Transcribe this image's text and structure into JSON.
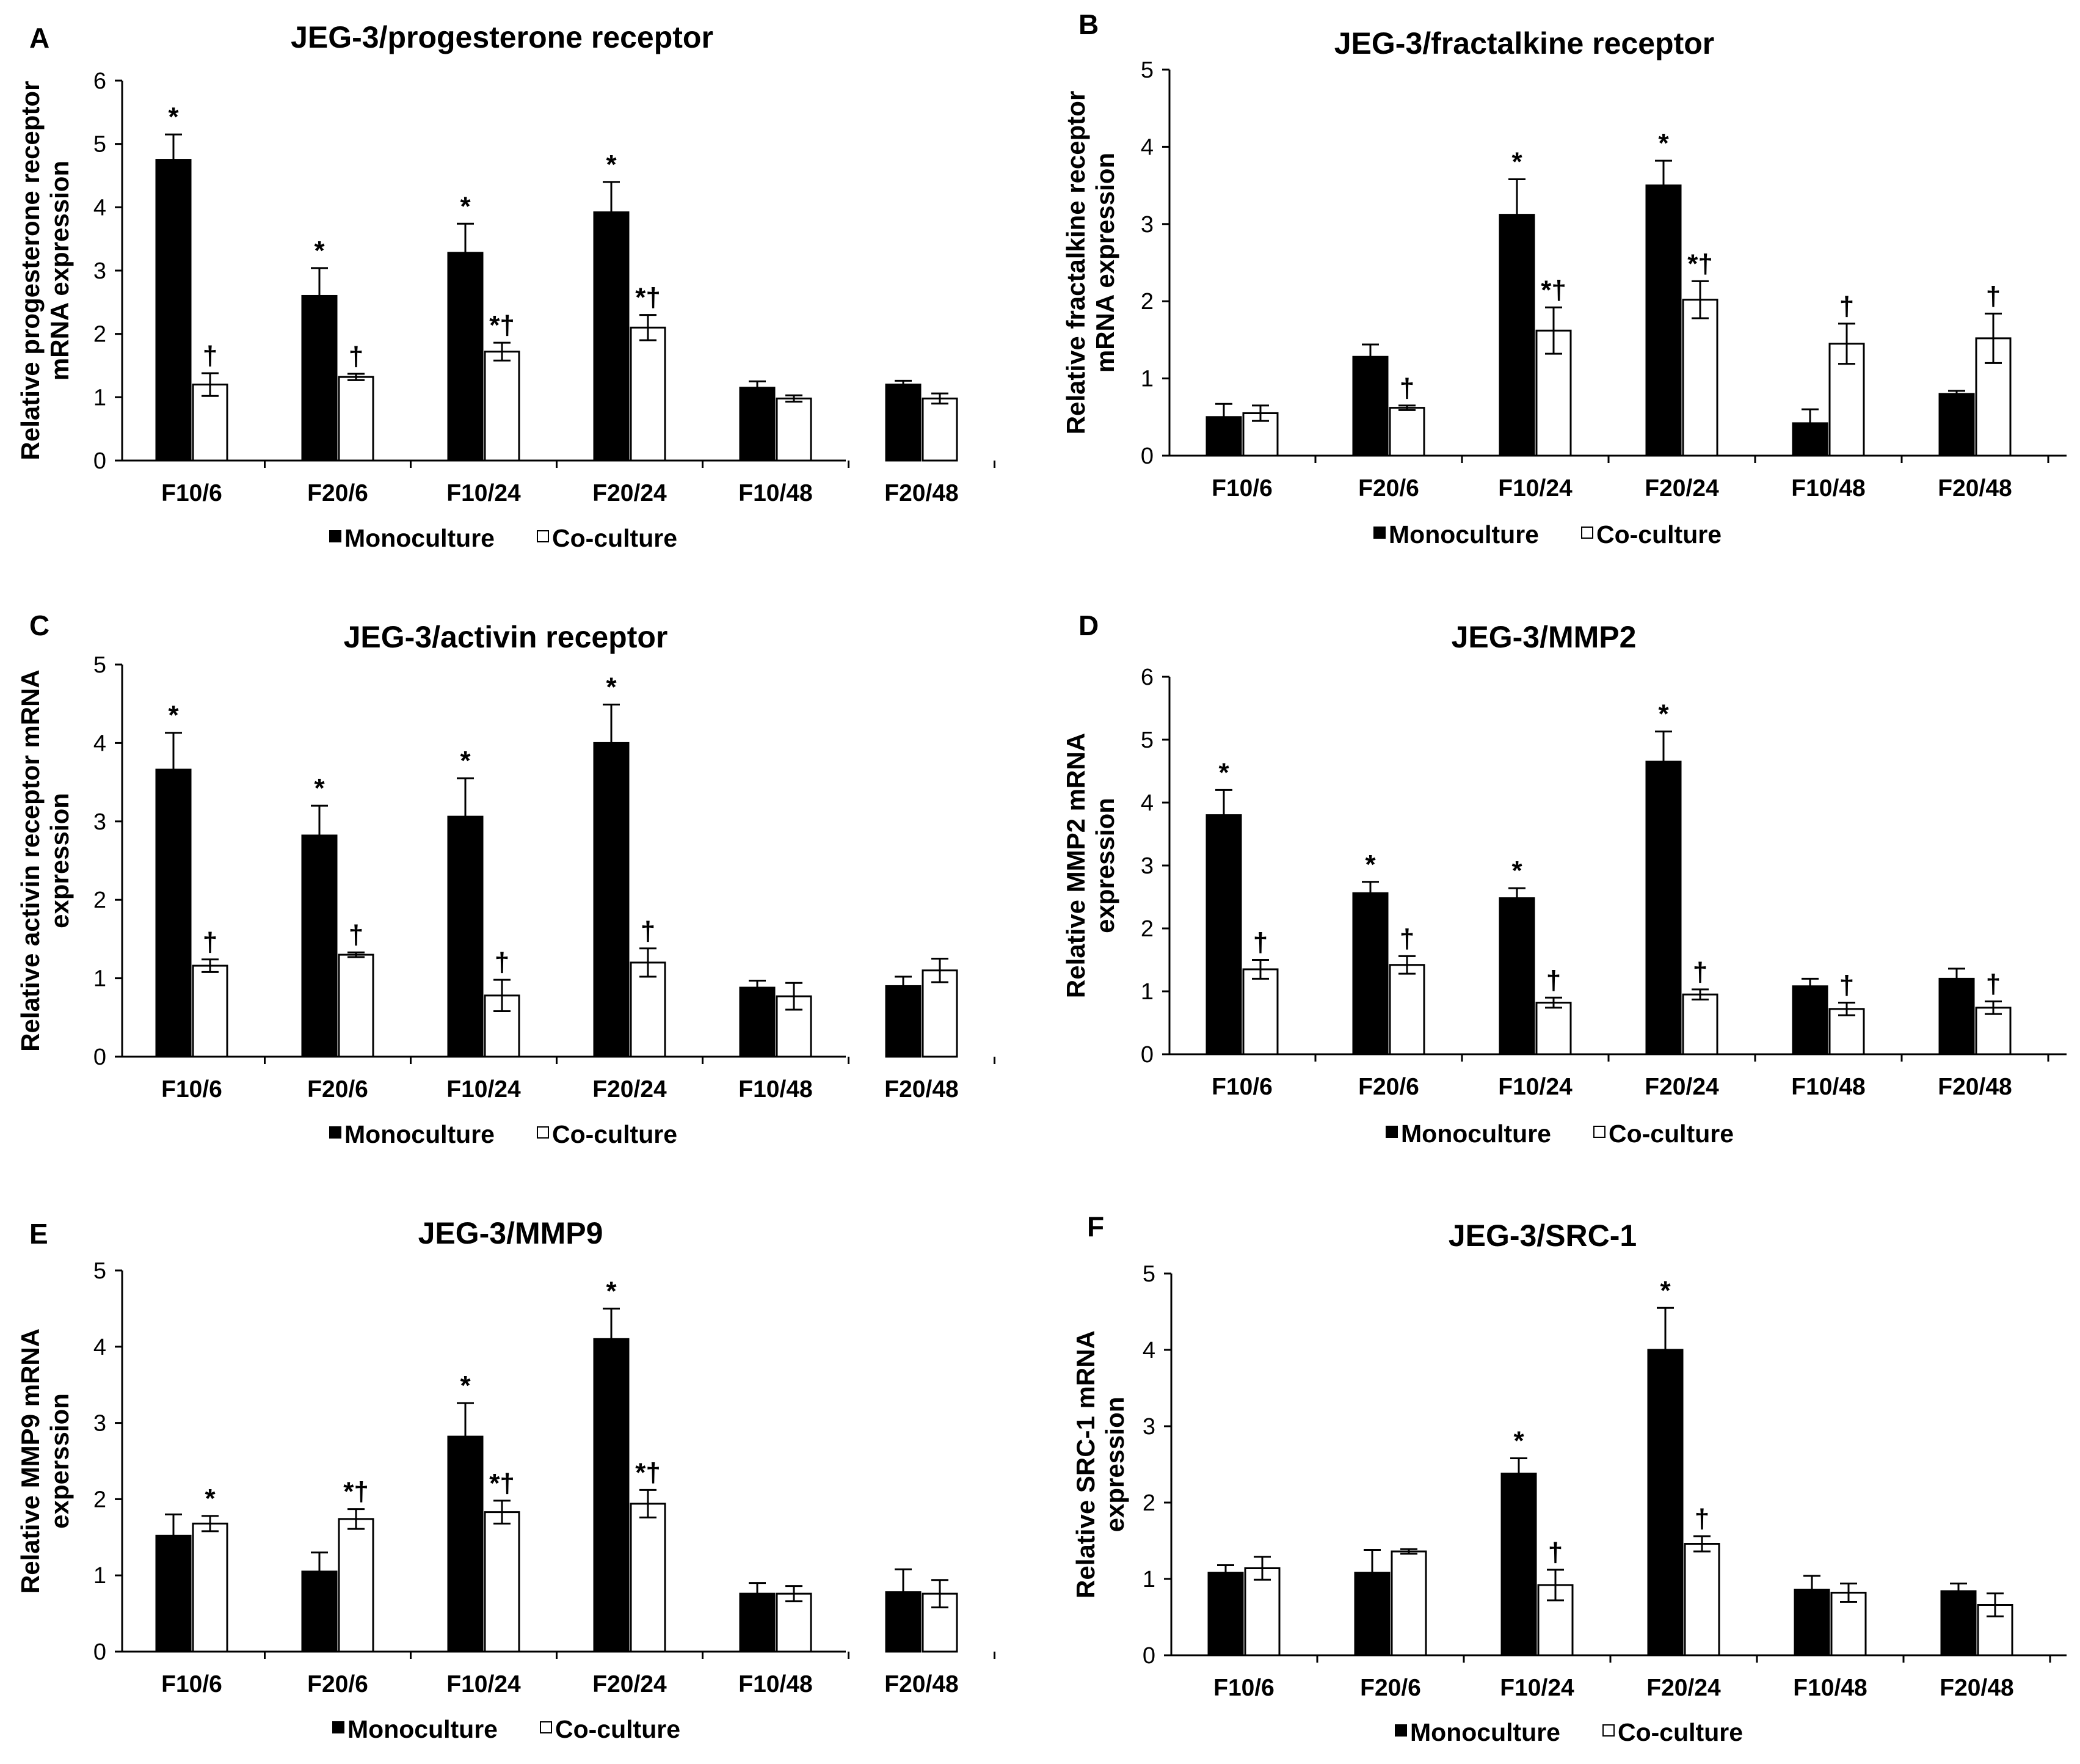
{
  "figure": {
    "legend": {
      "mono": "Monoculture",
      "co": "Co-culture"
    },
    "colors": {
      "mono": "#000000",
      "co": "#ffffff",
      "axis": "#000000"
    }
  },
  "chart_data": [
    {
      "type": "bar",
      "panel": "A",
      "title": "JEG-3/progesterone receptor",
      "ylabel": [
        "Relative progesterone receptor",
        "mRNA expression"
      ],
      "xlabel": "",
      "categories": [
        "F10/6",
        "F20/6",
        "F10/24",
        "F20/24",
        "F10/48",
        "F20/48"
      ],
      "ylim": [
        0,
        6
      ],
      "yticks": [
        0,
        1,
        2,
        3,
        4,
        5,
        6
      ],
      "series": [
        {
          "name": "Monoculture",
          "values": [
            4.75,
            2.6,
            3.28,
            3.92,
            1.15,
            1.2
          ],
          "errors": [
            0.4,
            0.44,
            0.46,
            0.48,
            0.1,
            0.06
          ],
          "marks": [
            "*",
            "*",
            "*",
            "*",
            "",
            ""
          ]
        },
        {
          "name": "Co-culture",
          "values": [
            1.2,
            1.32,
            1.72,
            2.1,
            0.98,
            0.98
          ],
          "errors": [
            0.18,
            0.05,
            0.14,
            0.2,
            0.05,
            0.08
          ],
          "marks": [
            "†",
            "†",
            "*†",
            "*†",
            "",
            ""
          ]
        }
      ]
    },
    {
      "type": "bar",
      "panel": "B",
      "title": "JEG-3/fractalkine receptor",
      "ylabel": [
        "Relative fractalkine receptor",
        "mRNA expression"
      ],
      "xlabel": "",
      "categories": [
        "F10/6",
        "F20/6",
        "F10/24",
        "F20/24",
        "F10/48",
        "F20/48"
      ],
      "ylim": [
        0,
        5
      ],
      "yticks": [
        0,
        1,
        2,
        3,
        4,
        5
      ],
      "series": [
        {
          "name": "Monoculture",
          "values": [
            0.5,
            1.28,
            3.12,
            3.5,
            0.42,
            0.8
          ],
          "errors": [
            0.17,
            0.16,
            0.46,
            0.32,
            0.18,
            0.04
          ],
          "marks": [
            "",
            "",
            "*",
            "*",
            "",
            ""
          ]
        },
        {
          "name": "Co-culture",
          "values": [
            0.55,
            0.62,
            1.62,
            2.02,
            1.45,
            1.52
          ],
          "errors": [
            0.1,
            0.03,
            0.3,
            0.24,
            0.26,
            0.32
          ],
          "marks": [
            "",
            "†",
            "*†",
            "*†",
            "†",
            "†"
          ]
        }
      ]
    },
    {
      "type": "bar",
      "panel": "C",
      "title": "JEG-3/activin receptor",
      "ylabel": [
        "Relative activin receptor mRNA",
        "expression"
      ],
      "xlabel": "",
      "categories": [
        "F10/6",
        "F20/6",
        "F10/24",
        "F20/24",
        "F10/48",
        "F20/48"
      ],
      "ylim": [
        0,
        5
      ],
      "yticks": [
        0,
        1,
        2,
        3,
        4,
        5
      ],
      "series": [
        {
          "name": "Monoculture",
          "values": [
            3.66,
            2.82,
            3.06,
            4.0,
            0.88,
            0.9
          ],
          "errors": [
            0.47,
            0.38,
            0.49,
            0.49,
            0.09,
            0.12
          ],
          "marks": [
            "*",
            "*",
            "*",
            "*",
            "",
            ""
          ]
        },
        {
          "name": "Co-culture",
          "values": [
            1.16,
            1.3,
            0.78,
            1.2,
            0.77,
            1.1
          ],
          "errors": [
            0.08,
            0.03,
            0.2,
            0.18,
            0.17,
            0.15
          ],
          "marks": [
            "†",
            "†",
            "†",
            "†",
            "",
            ""
          ]
        }
      ]
    },
    {
      "type": "bar",
      "panel": "D",
      "title": "JEG-3/MMP2",
      "ylabel": [
        "Relative MMP2 mRNA",
        "expression"
      ],
      "xlabel": "",
      "categories": [
        "F10/6",
        "F20/6",
        "F10/24",
        "F20/24",
        "F10/48",
        "F20/48"
      ],
      "ylim": [
        0,
        6
      ],
      "yticks": [
        0,
        1,
        2,
        3,
        4,
        5,
        6
      ],
      "series": [
        {
          "name": "Monoculture",
          "values": [
            3.8,
            2.56,
            2.48,
            4.65,
            1.08,
            1.2
          ],
          "errors": [
            0.4,
            0.18,
            0.16,
            0.48,
            0.12,
            0.16
          ],
          "marks": [
            "*",
            "*",
            "*",
            "*",
            "",
            ""
          ]
        },
        {
          "name": "Co-culture",
          "values": [
            1.35,
            1.42,
            0.82,
            0.95,
            0.72,
            0.74
          ],
          "errors": [
            0.15,
            0.14,
            0.08,
            0.08,
            0.1,
            0.1
          ],
          "marks": [
            "†",
            "†",
            "†",
            "†",
            "†",
            "†"
          ]
        }
      ]
    },
    {
      "type": "bar",
      "panel": "E",
      "title": "JEG-3/MMP9",
      "ylabel": [
        "Relative MMP9 mRNA",
        "experssion"
      ],
      "xlabel": "",
      "categories": [
        "F10/6",
        "F20/6",
        "F10/24",
        "F20/24",
        "F10/48",
        "F20/48"
      ],
      "ylim": [
        0,
        5
      ],
      "yticks": [
        0,
        1,
        2,
        3,
        4,
        5
      ],
      "series": [
        {
          "name": "Monoculture",
          "values": [
            1.52,
            1.05,
            2.82,
            4.1,
            0.76,
            0.78
          ],
          "errors": [
            0.28,
            0.25,
            0.44,
            0.4,
            0.14,
            0.3
          ],
          "marks": [
            "",
            "",
            "*",
            "*",
            "",
            ""
          ]
        },
        {
          "name": "Co-culture",
          "values": [
            1.68,
            1.74,
            1.83,
            1.94,
            0.76,
            0.76
          ],
          "errors": [
            0.1,
            0.13,
            0.15,
            0.18,
            0.1,
            0.18
          ],
          "marks": [
            "*",
            "*†",
            "*†",
            "*†",
            "",
            ""
          ]
        }
      ]
    },
    {
      "type": "bar",
      "panel": "F",
      "title": "JEG-3/SRC-1",
      "ylabel": [
        "Relative SRC-1 mRNA",
        "expression"
      ],
      "xlabel": "",
      "categories": [
        "F10/6",
        "F20/6",
        "F10/24",
        "F20/24",
        "F10/48",
        "F20/48"
      ],
      "ylim": [
        0,
        5
      ],
      "yticks": [
        0,
        1,
        2,
        3,
        4,
        5
      ],
      "series": [
        {
          "name": "Monoculture",
          "values": [
            1.08,
            1.08,
            2.38,
            4.0,
            0.86,
            0.84
          ],
          "errors": [
            0.1,
            0.3,
            0.2,
            0.55,
            0.18,
            0.1
          ],
          "marks": [
            "",
            "",
            "*",
            "*",
            "",
            ""
          ]
        },
        {
          "name": "Co-culture",
          "values": [
            1.14,
            1.36,
            0.92,
            1.46,
            0.82,
            0.66
          ],
          "errors": [
            0.15,
            0.03,
            0.2,
            0.1,
            0.12,
            0.15
          ],
          "marks": [
            "",
            "",
            "†",
            "†",
            "",
            ""
          ]
        }
      ]
    }
  ]
}
